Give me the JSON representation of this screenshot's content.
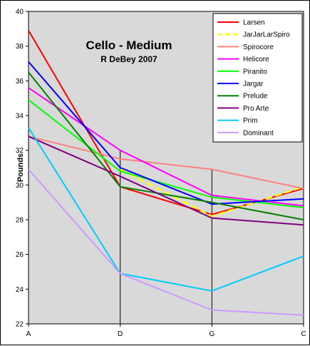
{
  "chart_data": {
    "type": "line",
    "title": "Cello - Medium",
    "subtitle": "R DeBey 2007",
    "xlabel": "",
    "ylabel": "Pounds",
    "categories": [
      "A",
      "D",
      "G",
      "C"
    ],
    "ylim": [
      22,
      40
    ],
    "yticks": [
      22,
      24,
      26,
      28,
      30,
      32,
      34,
      36,
      38,
      40
    ],
    "grid": false,
    "legend_position": "top-right",
    "plot_background": "#d9d9d9",
    "series": [
      {
        "name": "Larsen",
        "color": "#ff0000",
        "dashed": false,
        "values": [
          38.9,
          29.9,
          28.3,
          29.8
        ]
      },
      {
        "name": "JarJarLarSpiro",
        "color": "#ffff00",
        "dashed": true,
        "values": [
          null,
          30.9,
          28.2,
          29.9
        ]
      },
      {
        "name": "Spirocore",
        "color": "#ff8080",
        "dashed": false,
        "values": [
          32.8,
          31.5,
          30.9,
          29.8
        ]
      },
      {
        "name": "Helicore",
        "color": "#ff00ff",
        "dashed": false,
        "values": [
          35.6,
          32.0,
          29.4,
          28.8
        ]
      },
      {
        "name": "Piranito",
        "color": "#00ff00",
        "dashed": false,
        "values": [
          34.9,
          30.8,
          29.3,
          28.7
        ]
      },
      {
        "name": "Jargar",
        "color": "#0000ff",
        "dashed": false,
        "values": [
          37.1,
          31.0,
          28.9,
          29.2
        ]
      },
      {
        "name": "Prelude",
        "color": "#008000",
        "dashed": false,
        "values": [
          36.5,
          29.9,
          29.0,
          28.0
        ]
      },
      {
        "name": "Pro Arte",
        "color": "#800080",
        "dashed": false,
        "values": [
          32.8,
          30.5,
          28.1,
          27.7
        ]
      },
      {
        "name": "Prim",
        "color": "#00ccff",
        "dashed": false,
        "values": [
          33.3,
          24.9,
          23.9,
          25.9
        ]
      },
      {
        "name": "Dominant",
        "color": "#cc99ff",
        "dashed": false,
        "values": [
          30.9,
          24.9,
          22.8,
          22.5
        ]
      }
    ]
  }
}
